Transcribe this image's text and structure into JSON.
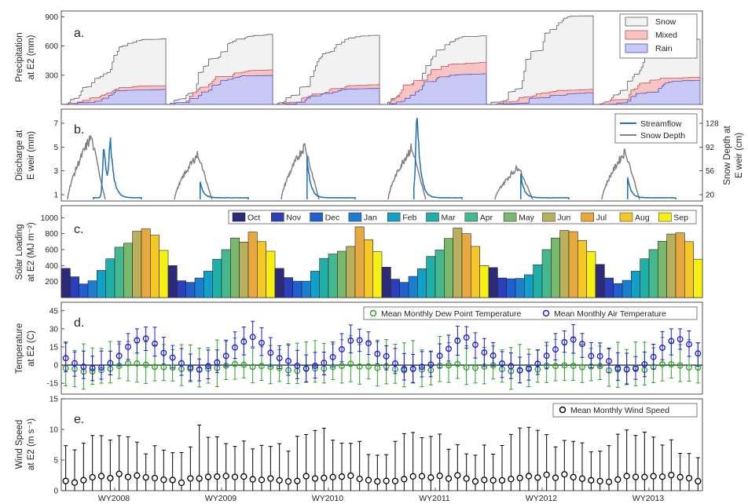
{
  "chart_data": [
    {
      "id": "a",
      "type": "area",
      "panel_label": "a.",
      "ylabel": [
        "Precipitation",
        "at E2 (mm)"
      ],
      "ylim": [
        0,
        960
      ],
      "yticks": [
        300,
        600,
        900
      ],
      "series": [
        {
          "name": "Snow",
          "color": "#f2f2f2",
          "stroke": "#5a5a5a",
          "values": [
            [
              0,
              680
            ],
            [
              1,
              720
            ],
            [
              2,
              710
            ],
            [
              3,
              705
            ],
            [
              4,
              915
            ],
            [
              5,
              670
            ],
            [
              6,
              545
            ]
          ]
        },
        {
          "name": "Mixed",
          "color": "#f7c3c3",
          "stroke": "#c05050",
          "values": [
            [
              0,
              190
            ],
            [
              1,
              355
            ],
            [
              2,
              205
            ],
            [
              3,
              435
            ],
            [
              4,
              155
            ],
            [
              5,
              280
            ],
            [
              6,
              275
            ]
          ]
        },
        {
          "name": "Rain",
          "color": "#c9c9f6",
          "stroke": "#5050c0",
          "values": [
            [
              0,
              155
            ],
            [
              1,
              300
            ],
            [
              2,
              165
            ],
            [
              3,
              315
            ],
            [
              4,
              120
            ],
            [
              5,
              245
            ],
            [
              6,
              245
            ]
          ]
        }
      ],
      "legend_position": "top-right"
    },
    {
      "id": "b",
      "type": "line",
      "panel_label": "b.",
      "ylabel": [
        "Discharge at",
        "E weir (mm)"
      ],
      "ylabel_right": [
        "Snow Depth at",
        "E weir (cm)"
      ],
      "yticks": [
        "1",
        "3",
        "5",
        "7"
      ],
      "yticks_right": [
        "20",
        "56",
        "92",
        "128"
      ],
      "series": [
        {
          "name": "Streamflow",
          "color": "#1f6fb4",
          "peaks": [
            [
              0.4,
              4.7
            ],
            [
              0.46,
              4.6
            ],
            [
              1.26,
              4.8
            ],
            [
              2.28,
              6.9
            ],
            [
              3.22,
              4.9
            ],
            [
              3.33,
              7.4
            ],
            [
              4.3,
              2.1
            ],
            [
              5.3,
              1.9
            ]
          ]
        },
        {
          "name": "Snow Depth",
          "color": "#808080",
          "peaks_cm": [
            [
              0.22,
              110
            ],
            [
              1.22,
              80
            ],
            [
              2.22,
              95
            ],
            [
              3.22,
              92
            ],
            [
              4.22,
              58
            ],
            [
              5.22,
              85
            ]
          ]
        }
      ],
      "legend_position": "top-right"
    },
    {
      "id": "c",
      "type": "bar",
      "panel_label": "c.",
      "ylabel": [
        "Solar Loading",
        "at E2 (MJ m⁻²)"
      ],
      "ylim": [
        0,
        1150
      ],
      "yticks": [
        200,
        400,
        600,
        800,
        1000
      ],
      "categories": [
        "Oct",
        "Nov",
        "Dec",
        "Jan",
        "Feb",
        "Mar",
        "Apr",
        "May",
        "Jun",
        "Jul",
        "Aug",
        "Sep"
      ],
      "colors": [
        "#2d2a7a",
        "#2c3fb8",
        "#1f5fd0",
        "#1a7fd0",
        "#13a0c8",
        "#1fb0a8",
        "#45b890",
        "#7ab870",
        "#b8b05a",
        "#e8a840",
        "#f5c828",
        "#f5f010"
      ],
      "series": [
        {
          "name": "WY2008",
          "values": [
            365,
            260,
            170,
            210,
            340,
            485,
            630,
            680,
            830,
            860,
            780,
            590
          ]
        },
        {
          "name": "WY2009",
          "values": [
            400,
            210,
            190,
            245,
            330,
            480,
            600,
            745,
            695,
            820,
            700,
            580
          ]
        },
        {
          "name": "WY2010",
          "values": [
            365,
            250,
            205,
            205,
            330,
            490,
            545,
            580,
            640,
            885,
            725,
            575
          ]
        },
        {
          "name": "WY2011",
          "values": [
            380,
            230,
            190,
            265,
            360,
            515,
            595,
            740,
            870,
            800,
            640,
            400
          ]
        },
        {
          "name": "WY2012",
          "values": [
            375,
            245,
            235,
            240,
            285,
            410,
            600,
            745,
            840,
            825,
            715,
            575
          ]
        },
        {
          "name": "WY2013",
          "values": [
            415,
            245,
            175,
            215,
            330,
            485,
            600,
            705,
            795,
            810,
            700,
            480
          ]
        }
      ],
      "legend_position": "top"
    },
    {
      "id": "d",
      "type": "scatter",
      "panel_label": "d.",
      "ylabel": [
        "Temperature",
        "at E2 (C)"
      ],
      "ylim": [
        -24,
        52
      ],
      "yticks": [
        "45",
        "30",
        "15",
        "0",
        "-15"
      ],
      "series": [
        {
          "name": "Mean Monthly Dew Point Temperature",
          "color": "#2aa12a",
          "mean": [
            -1,
            -3,
            -4,
            -4,
            -3,
            -3,
            -1,
            0,
            0,
            -1,
            -1,
            -2
          ],
          "err_lo": 13,
          "err_hi": 21
        },
        {
          "name": "Mean Monthly Air Temperature",
          "color": "#1a1ad0",
          "mean": [
            7,
            2,
            -2,
            -3,
            -2,
            1,
            7,
            14,
            20,
            22,
            17,
            9
          ],
          "err_lo": 10,
          "err_hi": 12
        }
      ],
      "legend_position": "top-right"
    },
    {
      "id": "e",
      "type": "scatter",
      "panel_label": "e.",
      "ylabel": [
        "Wind Speed",
        "at E2 (m s⁻¹)"
      ],
      "ylim": [
        0,
        15
      ],
      "yticks": [
        "15",
        "10",
        "5",
        "0"
      ],
      "series": [
        {
          "name": "Mean Monthly Wind Speed",
          "color": "#000000",
          "mean": [
            1.8,
            1.5,
            1.7,
            2.2,
            2.2,
            2.3,
            2.5,
            2.2,
            2.4,
            2.0,
            1.8,
            1.8
          ],
          "upper": [
            6.4,
            7.0,
            8.0,
            9.6,
            9.4,
            9.0,
            8.2,
            7.6,
            7.2,
            6.8,
            6.5,
            6.2
          ]
        }
      ],
      "legend_position": "top-right"
    }
  ],
  "x_labels": [
    "WY2008",
    "WY2009",
    "WY2010",
    "WY2011",
    "WY2012",
    "WY2013"
  ]
}
